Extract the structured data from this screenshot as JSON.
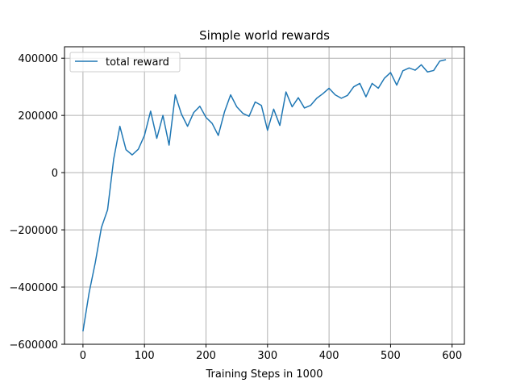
{
  "chart_data": {
    "type": "line",
    "title": "Simple world rewards",
    "xlabel": "Training Steps in 1000",
    "ylabel": "",
    "xlim": [
      -30,
      620
    ],
    "ylim": [
      -600000,
      440000
    ],
    "xticks": [
      0,
      100,
      200,
      300,
      400,
      500,
      600
    ],
    "yticks": [
      -600000,
      -400000,
      -200000,
      0,
      200000,
      400000
    ],
    "grid": true,
    "legend": {
      "location": "upper left"
    },
    "series": [
      {
        "name": "total reward",
        "color": "#1f77b4",
        "x": [
          0,
          10,
          20,
          30,
          40,
          50,
          60,
          70,
          80,
          90,
          100,
          110,
          120,
          130,
          140,
          150,
          160,
          170,
          180,
          190,
          200,
          210,
          220,
          230,
          240,
          250,
          260,
          270,
          280,
          290,
          300,
          310,
          320,
          330,
          340,
          350,
          360,
          370,
          380,
          390,
          400,
          410,
          420,
          430,
          440,
          450,
          460,
          470,
          480,
          490,
          500,
          510,
          520,
          530,
          540,
          550,
          560,
          570,
          580,
          590
        ],
        "y": [
          -555000,
          -420000,
          -315000,
          -192000,
          -130000,
          48000,
          162000,
          80000,
          62000,
          82000,
          130000,
          215000,
          120000,
          200000,
          96000,
          272000,
          205000,
          162000,
          210000,
          232000,
          193000,
          172000,
          130000,
          212000,
          272000,
          230000,
          207000,
          197000,
          247000,
          235000,
          148000,
          222000,
          165000,
          282000,
          230000,
          262000,
          226000,
          235000,
          260000,
          276000,
          295000,
          272000,
          260000,
          270000,
          300000,
          312000,
          265000,
          312000,
          295000,
          330000,
          350000,
          306000,
          356000,
          366000,
          358000,
          377000,
          352000,
          357000,
          390000,
          395000
        ]
      }
    ]
  }
}
